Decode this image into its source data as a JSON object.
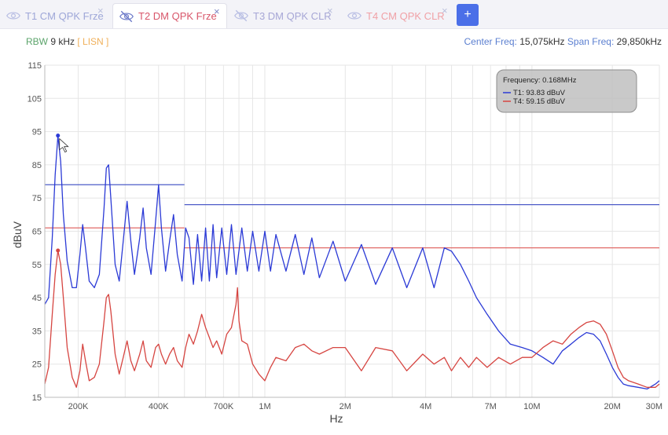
{
  "tabs": [
    {
      "label": "T1 CM QPK Frze",
      "color": "#9ea7d8",
      "active": false
    },
    {
      "label": "T2 DM QPK Frze",
      "color": "#d8566a",
      "active": true
    },
    {
      "label": "T3 DM QPK CLR",
      "color": "#a7a7d6",
      "active": false
    },
    {
      "label": "T4 CM QPK CLR",
      "color": "#f0a1a6",
      "active": false
    }
  ],
  "add_tab_label": "+",
  "info": {
    "rbw_label": "RBW",
    "rbw_value": "9 kHz",
    "lisn": "[ LISN ]",
    "center_label": "Center Freq:",
    "center_value": "15,075kHz",
    "span_label": "Span Freq:",
    "span_value": "29,850kHz"
  },
  "colors": {
    "t1": "#2b3ad6",
    "t4": "#d64541",
    "limit_t1": "#4d5bc8",
    "limit_t4": "#e06a68",
    "grid": "#e6e6e6"
  },
  "chart_data": {
    "type": "line",
    "xlabel": "Hz",
    "ylabel": "dBuV",
    "x_scale": "log",
    "xlim_hz": [
      150000,
      30000000
    ],
    "ylim": [
      15,
      115
    ],
    "y_ticks": [
      15,
      25,
      35,
      45,
      55,
      65,
      75,
      85,
      95,
      105,
      115
    ],
    "x_tick_labels": [
      {
        "hz": 200000,
        "label": "200K"
      },
      {
        "hz": 400000,
        "label": "400K"
      },
      {
        "hz": 700000,
        "label": "700K"
      },
      {
        "hz": 1000000,
        "label": "1M"
      },
      {
        "hz": 2000000,
        "label": "2M"
      },
      {
        "hz": 4000000,
        "label": "4M"
      },
      {
        "hz": 7000000,
        "label": "7M"
      },
      {
        "hz": 10000000,
        "label": "10M"
      },
      {
        "hz": 20000000,
        "label": "20M"
      },
      {
        "hz": 30000000,
        "label": "30M"
      }
    ],
    "tooltip": {
      "title": "Frequency: 0.168MHz",
      "entries": [
        {
          "label": "T1: 93.83 dBuV",
          "color": "#2b3ad6"
        },
        {
          "label": "T4: 59.15 dBuV",
          "color": "#d64541"
        }
      ]
    },
    "marker_hz": 168000,
    "limits": [
      {
        "name": "T1 limit",
        "segments": [
          [
            150000,
            500000,
            79
          ],
          [
            500000,
            30000000,
            73
          ]
        ]
      },
      {
        "name": "T4 limit",
        "segments": [
          [
            150000,
            500000,
            66
          ],
          [
            500000,
            30000000,
            60
          ]
        ]
      }
    ],
    "series": [
      {
        "key": "t1",
        "points": [
          [
            150000,
            43
          ],
          [
            155000,
            45
          ],
          [
            160000,
            63
          ],
          [
            164000,
            82
          ],
          [
            168000,
            93.8
          ],
          [
            172000,
            86
          ],
          [
            176000,
            70
          ],
          [
            182000,
            56
          ],
          [
            190000,
            48
          ],
          [
            197000,
            48
          ],
          [
            203000,
            58
          ],
          [
            208000,
            67
          ],
          [
            213000,
            60
          ],
          [
            220000,
            50
          ],
          [
            230000,
            48
          ],
          [
            240000,
            52
          ],
          [
            250000,
            72
          ],
          [
            255000,
            84
          ],
          [
            260000,
            85
          ],
          [
            265000,
            75
          ],
          [
            275000,
            55
          ],
          [
            285000,
            50
          ],
          [
            295000,
            62
          ],
          [
            305000,
            74
          ],
          [
            315000,
            62
          ],
          [
            325000,
            52
          ],
          [
            340000,
            63
          ],
          [
            350000,
            72
          ],
          [
            360000,
            60
          ],
          [
            375000,
            52
          ],
          [
            390000,
            68
          ],
          [
            400000,
            79
          ],
          [
            410000,
            66
          ],
          [
            425000,
            53
          ],
          [
            440000,
            62
          ],
          [
            455000,
            70
          ],
          [
            470000,
            58
          ],
          [
            490000,
            50
          ],
          [
            505000,
            66
          ],
          [
            520000,
            63
          ],
          [
            540000,
            49
          ],
          [
            560000,
            64
          ],
          [
            580000,
            50
          ],
          [
            600000,
            66
          ],
          [
            620000,
            50
          ],
          [
            640000,
            67
          ],
          [
            660000,
            51
          ],
          [
            690000,
            66
          ],
          [
            720000,
            52
          ],
          [
            750000,
            67
          ],
          [
            780000,
            52
          ],
          [
            820000,
            66
          ],
          [
            860000,
            53
          ],
          [
            900000,
            65
          ],
          [
            950000,
            53
          ],
          [
            1000000,
            65
          ],
          [
            1050000,
            53
          ],
          [
            1100000,
            64
          ],
          [
            1200000,
            53
          ],
          [
            1300000,
            64
          ],
          [
            1400000,
            52
          ],
          [
            1500000,
            63
          ],
          [
            1600000,
            51
          ],
          [
            1800000,
            62
          ],
          [
            2000000,
            50
          ],
          [
            2300000,
            61
          ],
          [
            2600000,
            49
          ],
          [
            3000000,
            60
          ],
          [
            3400000,
            48
          ],
          [
            3900000,
            60
          ],
          [
            4300000,
            48
          ],
          [
            4700000,
            60
          ],
          [
            5000000,
            59
          ],
          [
            5400000,
            55
          ],
          [
            5800000,
            50
          ],
          [
            6200000,
            45
          ],
          [
            6800000,
            40
          ],
          [
            7500000,
            35
          ],
          [
            8300000,
            31
          ],
          [
            9200000,
            30
          ],
          [
            10000000,
            29
          ],
          [
            11000000,
            27
          ],
          [
            12000000,
            25
          ],
          [
            13000000,
            29
          ],
          [
            14000000,
            31
          ],
          [
            15000000,
            33
          ],
          [
            16000000,
            34.5
          ],
          [
            17000000,
            34
          ],
          [
            18000000,
            32
          ],
          [
            19000000,
            28
          ],
          [
            20000000,
            24
          ],
          [
            21000000,
            21
          ],
          [
            22000000,
            19
          ],
          [
            23000000,
            18.5
          ],
          [
            25000000,
            18
          ],
          [
            27000000,
            17.5
          ],
          [
            29000000,
            19
          ],
          [
            30000000,
            20
          ]
        ]
      },
      {
        "key": "t4",
        "points": [
          [
            150000,
            19
          ],
          [
            155000,
            24
          ],
          [
            160000,
            40
          ],
          [
            164000,
            52
          ],
          [
            168000,
            59.2
          ],
          [
            172000,
            55
          ],
          [
            176000,
            45
          ],
          [
            182000,
            30
          ],
          [
            190000,
            21
          ],
          [
            197000,
            18
          ],
          [
            203000,
            23
          ],
          [
            208000,
            31
          ],
          [
            213000,
            26
          ],
          [
            220000,
            20
          ],
          [
            230000,
            21
          ],
          [
            240000,
            25
          ],
          [
            250000,
            38
          ],
          [
            255000,
            45
          ],
          [
            260000,
            46
          ],
          [
            265000,
            41
          ],
          [
            275000,
            28
          ],
          [
            285000,
            22
          ],
          [
            295000,
            27
          ],
          [
            305000,
            32
          ],
          [
            315000,
            26
          ],
          [
            325000,
            23
          ],
          [
            340000,
            28
          ],
          [
            350000,
            32
          ],
          [
            360000,
            26
          ],
          [
            375000,
            24
          ],
          [
            390000,
            30
          ],
          [
            400000,
            31
          ],
          [
            410000,
            28
          ],
          [
            425000,
            25
          ],
          [
            440000,
            28
          ],
          [
            455000,
            30
          ],
          [
            470000,
            26
          ],
          [
            490000,
            24
          ],
          [
            505000,
            30
          ],
          [
            520000,
            34
          ],
          [
            540000,
            31
          ],
          [
            560000,
            35
          ],
          [
            580000,
            40
          ],
          [
            600000,
            36
          ],
          [
            620000,
            33
          ],
          [
            640000,
            30
          ],
          [
            660000,
            32
          ],
          [
            690000,
            28
          ],
          [
            720000,
            34
          ],
          [
            750000,
            36
          ],
          [
            780000,
            43
          ],
          [
            790000,
            48
          ],
          [
            800000,
            38
          ],
          [
            820000,
            32
          ],
          [
            860000,
            31
          ],
          [
            900000,
            25
          ],
          [
            950000,
            22
          ],
          [
            1000000,
            20
          ],
          [
            1050000,
            24
          ],
          [
            1100000,
            27
          ],
          [
            1200000,
            26
          ],
          [
            1300000,
            30
          ],
          [
            1400000,
            31
          ],
          [
            1500000,
            29
          ],
          [
            1600000,
            28
          ],
          [
            1800000,
            30
          ],
          [
            2000000,
            30
          ],
          [
            2300000,
            23
          ],
          [
            2600000,
            30
          ],
          [
            3000000,
            29
          ],
          [
            3400000,
            23
          ],
          [
            3900000,
            28
          ],
          [
            4300000,
            25
          ],
          [
            4700000,
            27
          ],
          [
            5000000,
            23
          ],
          [
            5400000,
            27
          ],
          [
            5800000,
            24
          ],
          [
            6200000,
            27
          ],
          [
            6800000,
            24
          ],
          [
            7500000,
            27
          ],
          [
            8300000,
            25
          ],
          [
            9200000,
            27
          ],
          [
            10000000,
            27
          ],
          [
            11000000,
            30
          ],
          [
            12000000,
            32
          ],
          [
            13000000,
            31
          ],
          [
            14000000,
            34
          ],
          [
            15000000,
            36
          ],
          [
            16000000,
            37.5
          ],
          [
            17000000,
            38
          ],
          [
            18000000,
            37
          ],
          [
            19000000,
            34
          ],
          [
            20000000,
            29
          ],
          [
            21000000,
            24
          ],
          [
            22000000,
            21
          ],
          [
            23000000,
            20
          ],
          [
            25000000,
            19
          ],
          [
            27000000,
            18
          ],
          [
            29000000,
            18
          ],
          [
            30000000,
            19
          ]
        ]
      }
    ]
  }
}
